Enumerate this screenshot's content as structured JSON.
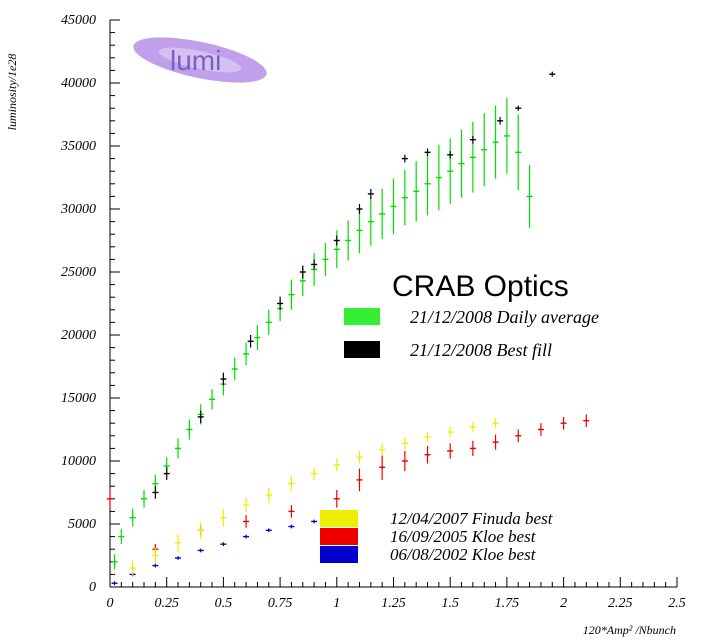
{
  "chart_data": {
    "type": "scatter",
    "title": "",
    "xlabel": "120*Amp² /Nbunch",
    "ylabel": "luminosity/1e28",
    "xlim": [
      0,
      2.5
    ],
    "ylim": [
      0,
      45000
    ],
    "x_ticks": [
      "0",
      "0.25",
      "0.5",
      "0.75",
      "1",
      "1.25",
      "1.5",
      "1.75",
      "2",
      "2.25",
      "2.5"
    ],
    "y_ticks": [
      "0",
      "5000",
      "10000",
      "15000",
      "20000",
      "25000",
      "30000",
      "35000",
      "40000",
      "45000"
    ],
    "grid": false,
    "logo_text": "lumi",
    "legend_title": "CRAB Optics",
    "series": [
      {
        "name": "21/12/2008 Daily average",
        "color": "#00dd00",
        "marker": "error-bar",
        "x": [
          0.02,
          0.05,
          0.1,
          0.15,
          0.2,
          0.25,
          0.3,
          0.35,
          0.4,
          0.45,
          0.5,
          0.55,
          0.6,
          0.65,
          0.7,
          0.75,
          0.8,
          0.85,
          0.9,
          0.95,
          1.0,
          1.05,
          1.1,
          1.15,
          1.2,
          1.25,
          1.3,
          1.35,
          1.4,
          1.45,
          1.5,
          1.55,
          1.6,
          1.65,
          1.7,
          1.75,
          1.8,
          1.85
        ],
        "y": [
          2000,
          4000,
          5500,
          7000,
          8200,
          9600,
          11000,
          12500,
          13700,
          14900,
          16100,
          17300,
          18500,
          19800,
          21000,
          22100,
          23200,
          24300,
          25200,
          26000,
          26800,
          27500,
          28300,
          29000,
          29600,
          30200,
          30900,
          31400,
          32000,
          32500,
          33000,
          33600,
          34100,
          34700,
          35300,
          35800,
          34500,
          31000
        ],
        "yerr": [
          600,
          600,
          700,
          700,
          700,
          700,
          800,
          800,
          800,
          800,
          900,
          900,
          900,
          1000,
          1000,
          1000,
          1200,
          1200,
          1300,
          1300,
          1500,
          1600,
          1800,
          1900,
          2000,
          2200,
          2200,
          2400,
          2500,
          2600,
          2600,
          2700,
          2800,
          2900,
          2900,
          3000,
          3000,
          2500
        ]
      },
      {
        "name": "21/12/2008 Best fill",
        "color": "#000000",
        "marker": "error-bar",
        "x": [
          0.2,
          0.25,
          0.4,
          0.5,
          0.62,
          0.75,
          0.85,
          0.9,
          1.0,
          1.1,
          1.15,
          1.3,
          1.4,
          1.5,
          1.6,
          1.72,
          1.8,
          1.95
        ],
        "y": [
          7500,
          9000,
          13500,
          16500,
          19500,
          22500,
          25000,
          25600,
          27500,
          30000,
          31200,
          34000,
          34500,
          34300,
          35500,
          37000,
          38000,
          40700
        ],
        "yerr": [
          500,
          500,
          500,
          500,
          500,
          500,
          500,
          400,
          400,
          400,
          400,
          300,
          300,
          300,
          300,
          300,
          200,
          200
        ]
      },
      {
        "name": "12/04/2007 Finuda best",
        "color": "#eeee00",
        "marker": "error-bar",
        "x": [
          0.1,
          0.2,
          0.3,
          0.4,
          0.5,
          0.6,
          0.7,
          0.8,
          0.9,
          1.0,
          1.1,
          1.2,
          1.3,
          1.4,
          1.5,
          1.6,
          1.7
        ],
        "y": [
          1500,
          2500,
          3500,
          4500,
          5500,
          6500,
          7300,
          8200,
          9000,
          9700,
          10300,
          10900,
          11400,
          11900,
          12300,
          12700,
          13000
        ],
        "yerr": [
          600,
          600,
          700,
          700,
          700,
          600,
          600,
          600,
          500,
          500,
          500,
          500,
          500,
          400,
          400,
          400,
          400
        ]
      },
      {
        "name": "16/09/2005 Kloe best",
        "color": "#ee0000",
        "marker": "error-bar",
        "x": [
          0.0,
          0.2,
          0.4,
          0.6,
          0.8,
          1.0,
          1.1,
          1.2,
          1.3,
          1.4,
          1.5,
          1.6,
          1.7,
          1.8,
          1.9,
          2.0,
          2.1
        ],
        "y": [
          7000,
          3000,
          4500,
          5200,
          6000,
          7000,
          8500,
          9500,
          10000,
          10500,
          10800,
          11000,
          11500,
          12000,
          12500,
          13000,
          13200
        ],
        "yerr": [
          800,
          400,
          400,
          500,
          500,
          700,
          900,
          1000,
          800,
          700,
          600,
          600,
          600,
          500,
          500,
          500,
          500
        ]
      },
      {
        "name": "06/08/2002 Kloe best",
        "color": "#0000cc",
        "marker": "error-bar",
        "x": [
          0.02,
          0.1,
          0.2,
          0.3,
          0.4,
          0.5,
          0.6,
          0.7,
          0.8,
          0.9
        ],
        "y": [
          300,
          1000,
          1700,
          2300,
          2900,
          3400,
          4000,
          4500,
          4800,
          5200
        ],
        "yerr": [
          150,
          150,
          150,
          150,
          150,
          150,
          150,
          150,
          150,
          150
        ]
      }
    ]
  }
}
